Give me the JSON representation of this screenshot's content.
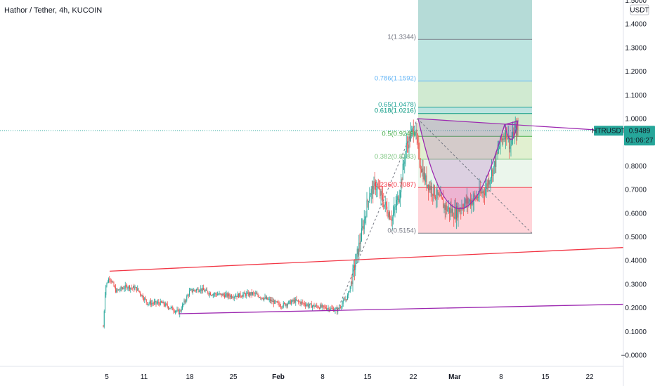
{
  "header": {
    "title": "Hathor / Tether, 4h, KUCOIN"
  },
  "price_axis": {
    "currency": "USDT",
    "ticks": [
      "1.5000",
      "1.4000",
      "1.3000",
      "1.2000",
      "1.1000",
      "1.0000",
      "0.9000",
      "0.8000",
      "0.7000",
      "0.6000",
      "0.5000",
      "0.4000",
      "0.3000",
      "0.2000",
      "0.1000",
      "−0.0000"
    ],
    "tick_values": [
      1.5,
      1.4,
      1.3,
      1.2,
      1.1,
      1.0,
      0.9,
      0.8,
      0.7,
      0.6,
      0.5,
      0.4,
      0.3,
      0.2,
      0.1,
      0.0
    ]
  },
  "last_price": {
    "symbol": "HTRUSDT",
    "price": "0.9489",
    "countdown": "01:06:27",
    "value": 0.9489,
    "color": "#26a69a"
  },
  "time_axis": {
    "labels": [
      "5",
      "11",
      "18",
      "25",
      "Feb",
      "8",
      "15",
      "22",
      "Mar",
      "8",
      "15",
      "22"
    ]
  },
  "fib": {
    "levels": [
      {
        "label": "1(1.3344)",
        "value": 1.3344,
        "color": "#787b86"
      },
      {
        "label": "0.786(1.1592)",
        "value": 1.1592,
        "color": "#64b5f6"
      },
      {
        "label": "0.65(1.0478)",
        "value": 1.0478,
        "color": "#26a69a"
      },
      {
        "label": "0.618(1.0216)",
        "value": 1.0216,
        "color": "#089981"
      },
      {
        "label": "0.5(0.9249)",
        "value": 0.9249,
        "color": "#4caf50"
      },
      {
        "label": "0.382(0.8283)",
        "value": 0.8283,
        "color": "#81c784"
      },
      {
        "label": "0.236(0.7087)",
        "value": 0.7087,
        "color": "#f23645"
      },
      {
        "label": "0(0.5154)",
        "value": 0.5154,
        "color": "#787b86"
      }
    ]
  },
  "chart_data": {
    "type": "candlestick",
    "symbol": "HTRUSDT",
    "exchange": "KUCOIN",
    "interval": "4h",
    "ylim": [
      -0.03,
      1.52
    ],
    "price_path": [
      {
        "x": 147,
        "price": 0.12
      },
      {
        "x": 150,
        "price": 0.29
      },
      {
        "x": 156,
        "price": 0.33
      },
      {
        "x": 165,
        "price": 0.27
      },
      {
        "x": 180,
        "price": 0.29
      },
      {
        "x": 195,
        "price": 0.28
      },
      {
        "x": 210,
        "price": 0.22
      },
      {
        "x": 230,
        "price": 0.22
      },
      {
        "x": 255,
        "price": 0.18
      },
      {
        "x": 270,
        "price": 0.27
      },
      {
        "x": 285,
        "price": 0.28
      },
      {
        "x": 300,
        "price": 0.26
      },
      {
        "x": 330,
        "price": 0.25
      },
      {
        "x": 360,
        "price": 0.26
      },
      {
        "x": 385,
        "price": 0.23
      },
      {
        "x": 400,
        "price": 0.21
      },
      {
        "x": 420,
        "price": 0.23
      },
      {
        "x": 440,
        "price": 0.21
      },
      {
        "x": 465,
        "price": 0.2
      },
      {
        "x": 480,
        "price": 0.19
      },
      {
        "x": 495,
        "price": 0.25
      },
      {
        "x": 505,
        "price": 0.38
      },
      {
        "x": 515,
        "price": 0.52
      },
      {
        "x": 525,
        "price": 0.68
      },
      {
        "x": 535,
        "price": 0.72
      },
      {
        "x": 548,
        "price": 0.63
      },
      {
        "x": 558,
        "price": 0.58
      },
      {
        "x": 568,
        "price": 0.68
      },
      {
        "x": 578,
        "price": 0.88
      },
      {
        "x": 590,
        "price": 0.97
      },
      {
        "x": 597,
        "price": 0.82
      },
      {
        "x": 605,
        "price": 0.74
      },
      {
        "x": 620,
        "price": 0.68
      },
      {
        "x": 635,
        "price": 0.62
      },
      {
        "x": 648,
        "price": 0.6
      },
      {
        "x": 660,
        "price": 0.64
      },
      {
        "x": 675,
        "price": 0.66
      },
      {
        "x": 690,
        "price": 0.7
      },
      {
        "x": 703,
        "price": 0.8
      },
      {
        "x": 712,
        "price": 0.9
      },
      {
        "x": 720,
        "price": 0.95
      },
      {
        "x": 726,
        "price": 0.88
      },
      {
        "x": 732,
        "price": 0.95
      },
      {
        "x": 737,
        "price": 0.95
      }
    ],
    "trendlines": [
      {
        "name": "resistance",
        "color": "#f23645",
        "from": {
          "x": 156,
          "price": 0.355
        },
        "to": {
          "x": 887,
          "price": 0.455
        }
      },
      {
        "name": "support",
        "color": "#9c27b0",
        "from": {
          "x": 255,
          "price": 0.175
        },
        "to": {
          "x": 887,
          "price": 0.215
        }
      },
      {
        "name": "cup-rim",
        "color": "#9c27b0",
        "from": {
          "x": 594,
          "price": 1.0
        },
        "to": {
          "x": 887,
          "price": 0.945
        }
      }
    ]
  }
}
